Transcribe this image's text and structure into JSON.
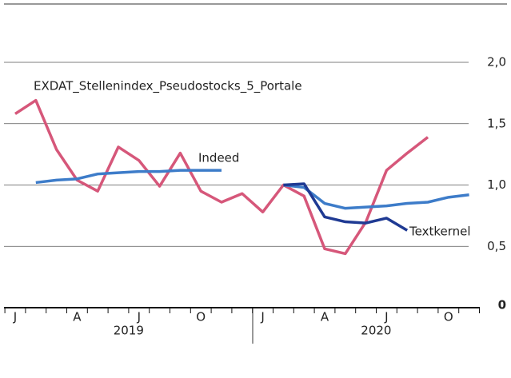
{
  "chart_data": {
    "type": "line",
    "categories": [
      "J",
      null,
      null,
      "A",
      null,
      null,
      "J",
      null,
      null,
      "O",
      null,
      null,
      "J",
      null,
      null,
      "A",
      null,
      null,
      "J",
      null,
      null,
      "O",
      null,
      null
    ],
    "years": [
      "2019",
      "2020"
    ],
    "series": [
      {
        "name": "EXDAT_Stellenindex_Pseudostocks_5_Portale",
        "color": "#d6577a",
        "values": [
          1.58,
          1.69,
          1.29,
          1.04,
          0.95,
          1.31,
          1.2,
          0.99,
          1.26,
          0.95,
          0.86,
          0.93,
          0.78,
          1.0,
          0.91,
          0.48,
          0.44,
          0.7,
          1.12,
          1.26,
          1.39,
          null,
          null,
          null
        ]
      },
      {
        "name": "Indeed",
        "color": "#3d7cc9",
        "values": [
          null,
          1.02,
          1.04,
          1.05,
          1.09,
          1.1,
          1.11,
          1.11,
          1.12,
          1.12,
          1.12,
          null,
          null,
          1.0,
          0.98,
          0.85,
          0.81,
          0.82,
          0.83,
          0.85,
          0.86,
          0.9,
          0.92,
          null
        ]
      },
      {
        "name": "Textkernel",
        "color": "#1f3a93",
        "values": [
          null,
          null,
          null,
          null,
          null,
          null,
          null,
          null,
          null,
          null,
          null,
          null,
          null,
          1.0,
          1.01,
          0.74,
          0.7,
          0.69,
          0.73,
          0.63,
          null,
          null,
          null,
          null
        ]
      }
    ],
    "ylim": [
      0,
      2
    ],
    "yticks": [
      {
        "value": 0,
        "label": "0"
      },
      {
        "value": 0.5,
        "label": "0,5"
      },
      {
        "value": 1,
        "label": "1,0"
      },
      {
        "value": 1.5,
        "label": "1,5"
      },
      {
        "value": 2,
        "label": "2,0"
      }
    ],
    "grid": true
  }
}
